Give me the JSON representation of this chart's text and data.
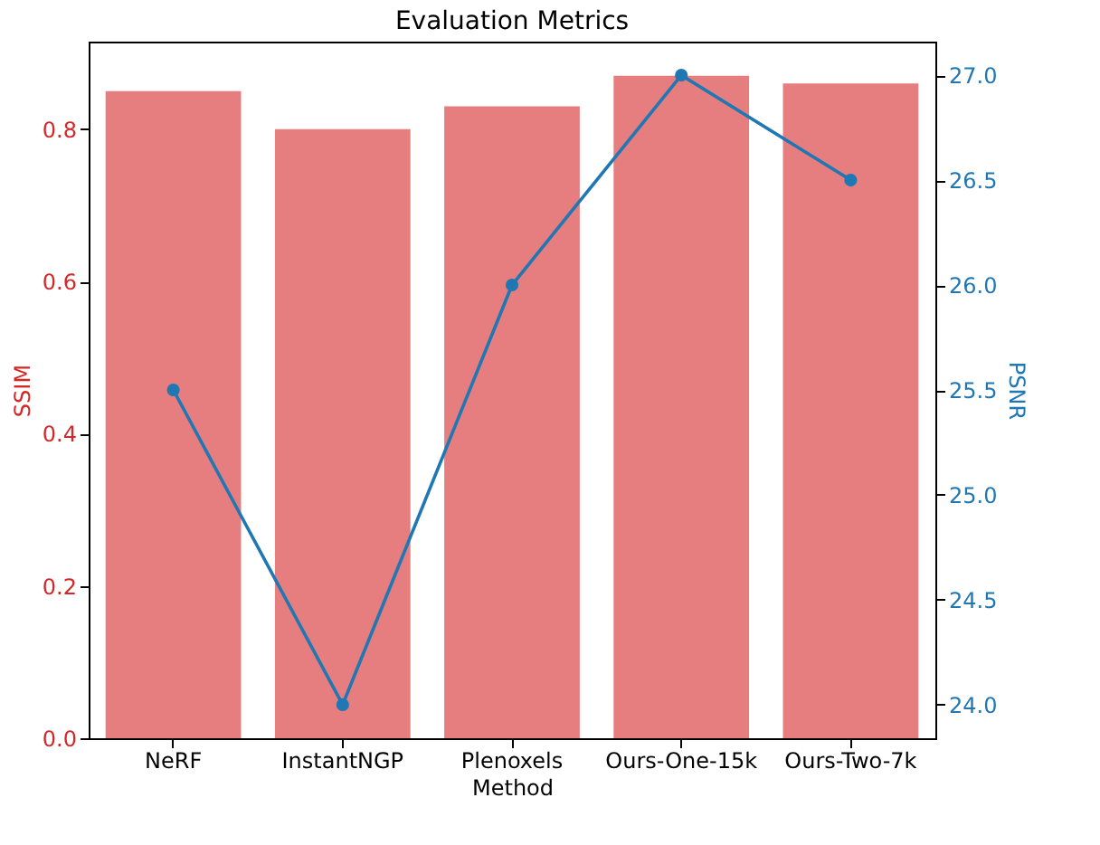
{
  "chart_data": {
    "type": "bar",
    "title": "Evaluation Metrics",
    "xlabel": "Method",
    "ylabel": "SSIM",
    "y2label": "PSNR",
    "categories": [
      "NeRF",
      "InstantNGP",
      "Plenoxels",
      "Ours-One-15k",
      "Ours-Two-7k"
    ],
    "series": [
      {
        "color": "#e67d7e",
        "values": [
          0.85,
          0.8,
          0.83,
          0.87,
          0.86
        ]
      },
      {
        "type": "line",
        "axis": "y2",
        "color": "#1f77b4",
        "marker": "circle",
        "values": [
          25.5,
          24.0,
          26.0,
          27.0,
          26.5
        ]
      }
    ],
    "ylim": [
      0,
      0.915
    ],
    "yticks": [
      {
        "value": 0,
        "label": "0.0"
      },
      0.2,
      0.4,
      0.6,
      0.8
    ],
    "y2lim": [
      23.84,
      27.16
    ],
    "y2ticks": [
      {
        "value": 24,
        "label": "24.0"
      },
      24.5,
      {
        "value": 25,
        "label": "25.0"
      },
      25.5,
      {
        "value": 26,
        "label": "26.0"
      },
      26.5,
      {
        "value": 27,
        "label": "27.0"
      }
    ],
    "grid": false
  }
}
